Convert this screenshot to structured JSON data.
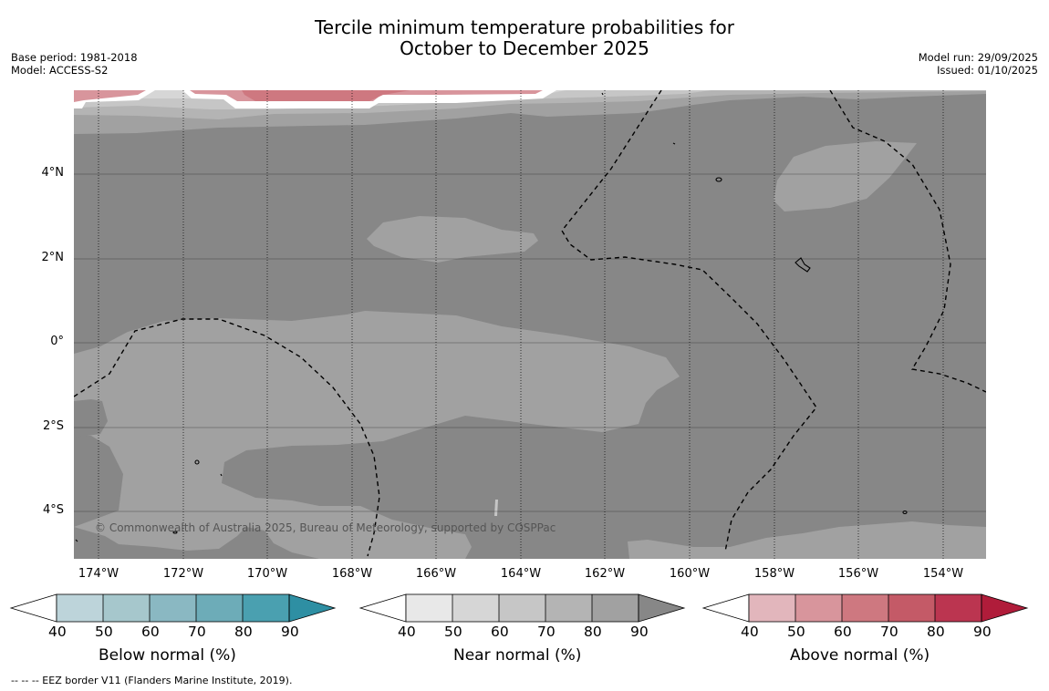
{
  "title_line1": "Tercile minimum temperature probabilities for",
  "title_line2": "October to December 2025",
  "meta_left": [
    "Base period: 1981-2018",
    "Model: ACCESS-S2"
  ],
  "meta_right": [
    "Model run: 29/09/2025",
    "Issued: 01/10/2025"
  ],
  "copyright": "© Commonwealth of Australia 2025, Bureau of Meteorology, supported by COSPPac",
  "lat_labels": [
    "4°N",
    "2°N",
    "0°",
    "2°S",
    "4°S"
  ],
  "lon_labels": [
    "174°W",
    "172°W",
    "170°W",
    "168°W",
    "166°W",
    "164°W",
    "162°W",
    "160°W",
    "158°W",
    "156°W",
    "154°W"
  ],
  "colorbars": [
    {
      "label": "Below normal (%)",
      "ticks": [
        "40",
        "50",
        "60",
        "70",
        "80",
        "90"
      ],
      "colors": [
        "#ffffff",
        "#bdd4da",
        "#a6c7cc",
        "#8ab8c2",
        "#6dacb8",
        "#4aa0b0",
        "#2e8fa3"
      ]
    },
    {
      "label": "Near normal (%)",
      "ticks": [
        "40",
        "50",
        "60",
        "70",
        "80",
        "90"
      ],
      "colors": [
        "#ffffff",
        "#e8e8e8",
        "#d6d6d6",
        "#c6c6c6",
        "#b4b4b4",
        "#a1a1a1",
        "#878787"
      ]
    },
    {
      "label": "Above normal (%)",
      "ticks": [
        "40",
        "50",
        "60",
        "70",
        "80",
        "90"
      ],
      "colors": [
        "#ffffff",
        "#e2b6bc",
        "#d8959c",
        "#ce7880",
        "#c45a67",
        "#bb3550",
        "#b01c3a"
      ]
    }
  ],
  "footnote": "--  --  -- EEZ border V11 (Flanders Marine Institute, 2019)."
}
